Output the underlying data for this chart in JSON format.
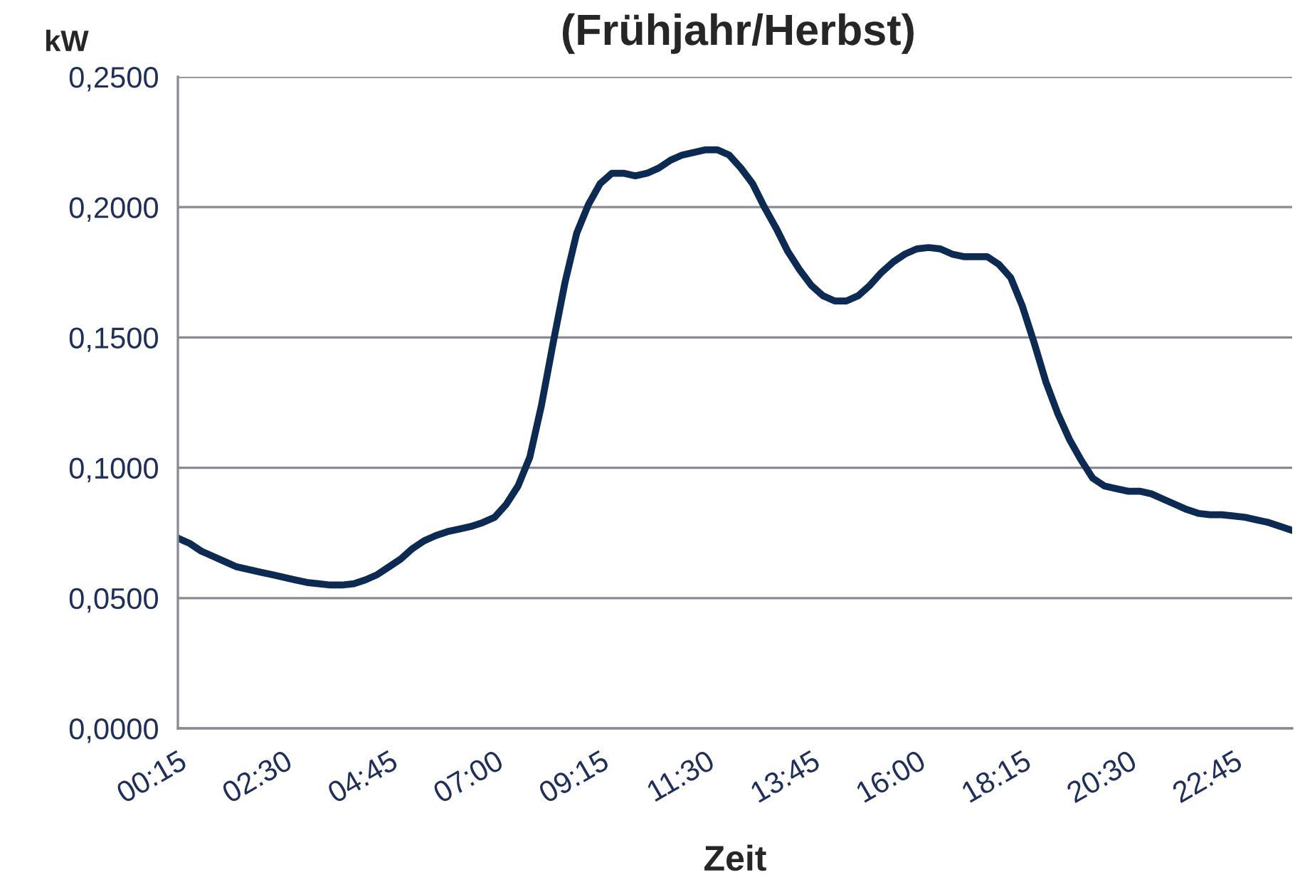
{
  "chart_data": {
    "type": "line",
    "title": "(Frühjahr/Herbst)",
    "xlabel": "Zeit",
    "ylabel": "kW",
    "categories": [
      "00:15",
      null,
      null,
      null,
      null,
      null,
      null,
      null,
      null,
      "02:30",
      null,
      null,
      null,
      null,
      null,
      null,
      null,
      null,
      "04:45",
      null,
      null,
      null,
      null,
      null,
      null,
      null,
      null,
      "07:00",
      null,
      null,
      null,
      null,
      null,
      null,
      null,
      null,
      "09:15",
      null,
      null,
      null,
      null,
      null,
      null,
      null,
      null,
      "11:30",
      null,
      null,
      null,
      null,
      null,
      null,
      null,
      null,
      "13:45",
      null,
      null,
      null,
      null,
      null,
      null,
      null,
      null,
      "16:00",
      null,
      null,
      null,
      null,
      null,
      null,
      null,
      null,
      "18:15",
      null,
      null,
      null,
      null,
      null,
      null,
      null,
      null,
      "20:30",
      null,
      null,
      null,
      null,
      null,
      null,
      null,
      null,
      "22:45",
      null,
      null,
      null,
      null,
      null
    ],
    "series": [
      {
        "color": "#0d2a52",
        "values": [
          0.073,
          0.071,
          0.068,
          0.066,
          0.064,
          0.062,
          0.061,
          0.06,
          0.059,
          0.058,
          0.057,
          0.056,
          0.0555,
          0.055,
          0.055,
          0.0555,
          0.057,
          0.059,
          0.062,
          0.065,
          0.069,
          0.072,
          0.074,
          0.0755,
          0.0765,
          0.0775,
          0.079,
          0.081,
          0.086,
          0.093,
          0.104,
          0.124,
          0.148,
          0.171,
          0.19,
          0.201,
          0.209,
          0.213,
          0.213,
          0.212,
          0.213,
          0.215,
          0.218,
          0.22,
          0.221,
          0.222,
          0.222,
          0.22,
          0.215,
          0.209,
          0.2,
          0.192,
          0.183,
          0.176,
          0.17,
          0.166,
          0.164,
          0.164,
          0.166,
          0.17,
          0.175,
          0.179,
          0.182,
          0.184,
          0.1845,
          0.184,
          0.182,
          0.181,
          0.181,
          0.181,
          0.178,
          0.173,
          0.162,
          0.148,
          0.133,
          0.121,
          0.111,
          0.103,
          0.096,
          0.093,
          0.092,
          0.091,
          0.091,
          0.09,
          0.088,
          0.086,
          0.084,
          0.0825,
          0.082,
          0.082,
          0.0815,
          0.081,
          0.08,
          0.079,
          0.0775,
          0.076
        ]
      }
    ],
    "ylim": [
      0,
      0.25
    ],
    "yticks": [
      {
        "value": 0,
        "label": "0,0000"
      },
      {
        "value": 0.05,
        "label": "0,0500"
      },
      {
        "value": 0.1,
        "label": "0,1000"
      },
      {
        "value": 0.15,
        "label": "0,1500"
      },
      {
        "value": 0.2,
        "label": "0,2000"
      },
      {
        "value": 0.25,
        "label": "0,2500"
      }
    ],
    "grid": "y",
    "legend": false,
    "marker": "none",
    "line_style": "solid"
  }
}
